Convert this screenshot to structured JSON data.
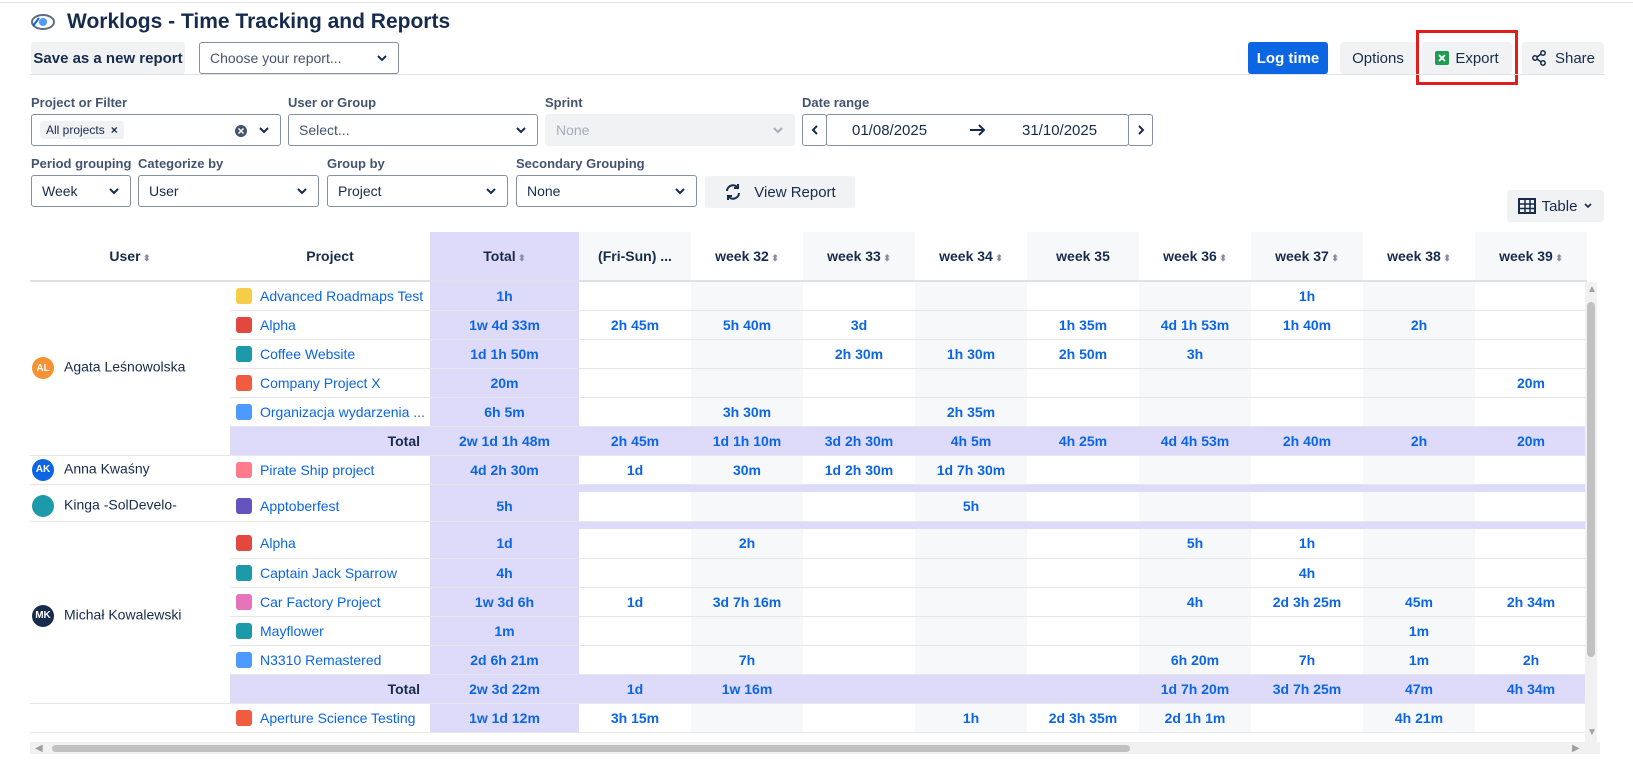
{
  "header": {
    "title": "Worklogs - Time Tracking and Reports",
    "save_report": "Save as a new report",
    "choose_report_placeholder": "Choose your report...",
    "log_time": "Log time",
    "options": "Options",
    "export": "Export",
    "share": "Share"
  },
  "filters": {
    "project_label": "Project or Filter",
    "project_chip": "All projects",
    "user_label": "User or Group",
    "user_placeholder": "Select...",
    "sprint_label": "Sprint",
    "sprint_value": "None",
    "date_label": "Date range",
    "date_from": "01/08/2025",
    "date_to": "31/10/2025",
    "period_label": "Period grouping",
    "period_value": "Week",
    "categorize_label": "Categorize by",
    "categorize_value": "User",
    "group_label": "Group by",
    "group_value": "Project",
    "secondary_label": "Secondary Grouping",
    "secondary_value": "None",
    "view_report": "View Report",
    "view_mode": "Table"
  },
  "table": {
    "headers": [
      "User",
      "Project",
      "Total",
      "(Fri-Sun) ...",
      "week 32",
      "week 33",
      "week 34",
      "week 35",
      "week 36",
      "week 37",
      "week 38",
      "week 39"
    ],
    "total_label": "Total",
    "groups": [
      {
        "user": "Agata Leśnowolska",
        "initials": "AL",
        "avatar_color": "#f79232",
        "rows": [
          {
            "project": "Advanced Roadmaps Test",
            "icon_color": "#f5cd47",
            "total": "1h",
            "cells": [
              "",
              "",
              "",
              "",
              "",
              "",
              "1h",
              "",
              ""
            ]
          },
          {
            "project": "Alpha",
            "icon_color": "#e2483d",
            "total": "1w 4d 33m",
            "cells": [
              "2h 45m",
              "5h 40m",
              "3d",
              "",
              "1h 35m",
              "4d 1h 53m",
              "1h 40m",
              "2h",
              ""
            ]
          },
          {
            "project": "Coffee Website",
            "icon_color": "#1d9aaa",
            "total": "1d 1h 50m",
            "cells": [
              "",
              "",
              "2h 30m",
              "1h 30m",
              "2h 50m",
              "3h",
              "",
              "",
              ""
            ]
          },
          {
            "project": "Company Project X",
            "icon_color": "#f15b40",
            "total": "20m",
            "cells": [
              "",
              "",
              "",
              "",
              "",
              "",
              "",
              "",
              "20m"
            ]
          },
          {
            "project": "Organizacja wydarzenia ...",
            "icon_color": "#4c9aff",
            "total": "6h 5m",
            "cells": [
              "",
              "3h 30m",
              "",
              "2h 35m",
              "",
              "",
              "",
              "",
              ""
            ]
          }
        ],
        "sum": {
          "total": "2w 1d 1h 48m",
          "cells": [
            "2h 45m",
            "1d 1h 10m",
            "3d 2h 30m",
            "4h 5m",
            "4h 25m",
            "4d 4h 53m",
            "2h 40m",
            "2h",
            "20m"
          ]
        }
      },
      {
        "user": "Anna Kwaśny",
        "initials": "AK",
        "avatar_color": "#0c66e4",
        "rows": [
          {
            "project": "Pirate Ship project",
            "icon_color": "#ff7a8a",
            "total": "4d 2h 30m",
            "cells": [
              "1d",
              "30m",
              "1d 2h 30m",
              "1d 7h 30m",
              "",
              "",
              "",
              "",
              ""
            ]
          }
        ]
      },
      {
        "user": "Kinga -SolDevelo-",
        "initials": "",
        "avatar_color": "#1d9aaa",
        "rows": [
          {
            "project": "Apptoberfest",
            "icon_color": "#6554c0",
            "total": "5h",
            "cells": [
              "",
              "",
              "",
              "5h",
              "",
              "",
              "",
              "",
              ""
            ]
          }
        ]
      },
      {
        "user": "Michał Kowalewski",
        "initials": "MK",
        "avatar_color": "#172b4d",
        "rows": [
          {
            "project": "Alpha",
            "icon_color": "#e2483d",
            "total": "1d",
            "cells": [
              "",
              "2h",
              "",
              "",
              "",
              "5h",
              "1h",
              "",
              ""
            ]
          },
          {
            "project": "Captain Jack Sparrow",
            "icon_color": "#1d9aaa",
            "total": "4h",
            "cells": [
              "",
              "",
              "",
              "",
              "",
              "",
              "4h",
              "",
              ""
            ]
          },
          {
            "project": "Car Factory Project",
            "icon_color": "#e774bb",
            "total": "1w 3d 6h",
            "cells": [
              "1d",
              "3d 7h 16m",
              "",
              "",
              "",
              "4h",
              "2d 3h 25m",
              "45m",
              "2h 34m"
            ]
          },
          {
            "project": "Mayflower",
            "icon_color": "#1d9aaa",
            "total": "1m",
            "cells": [
              "",
              "",
              "",
              "",
              "",
              "",
              "",
              "1m",
              ""
            ]
          },
          {
            "project": "N3310 Remastered",
            "icon_color": "#4c9aff",
            "total": "2d 6h 21m",
            "cells": [
              "",
              "7h",
              "",
              "",
              "",
              "6h 20m",
              "7h",
              "1m",
              "2h"
            ]
          }
        ],
        "sum": {
          "total": "2w 3d 22m",
          "cells": [
            "1d",
            "1w 16m",
            "",
            "",
            "",
            "1d 7h 20m",
            "3d 7h 25m",
            "47m",
            "4h 34m"
          ]
        }
      },
      {
        "user": "",
        "initials": "",
        "avatar_color": "#ffffff",
        "rows": [
          {
            "project": "Aperture Science Testing",
            "icon_color": "#f15b40",
            "total": "1w 1d 12m",
            "cells": [
              "3h 15m",
              "",
              "",
              "1h",
              "2d 3h 35m",
              "2d 1h 1m",
              "",
              "4h 21m",
              ""
            ]
          }
        ]
      }
    ]
  }
}
